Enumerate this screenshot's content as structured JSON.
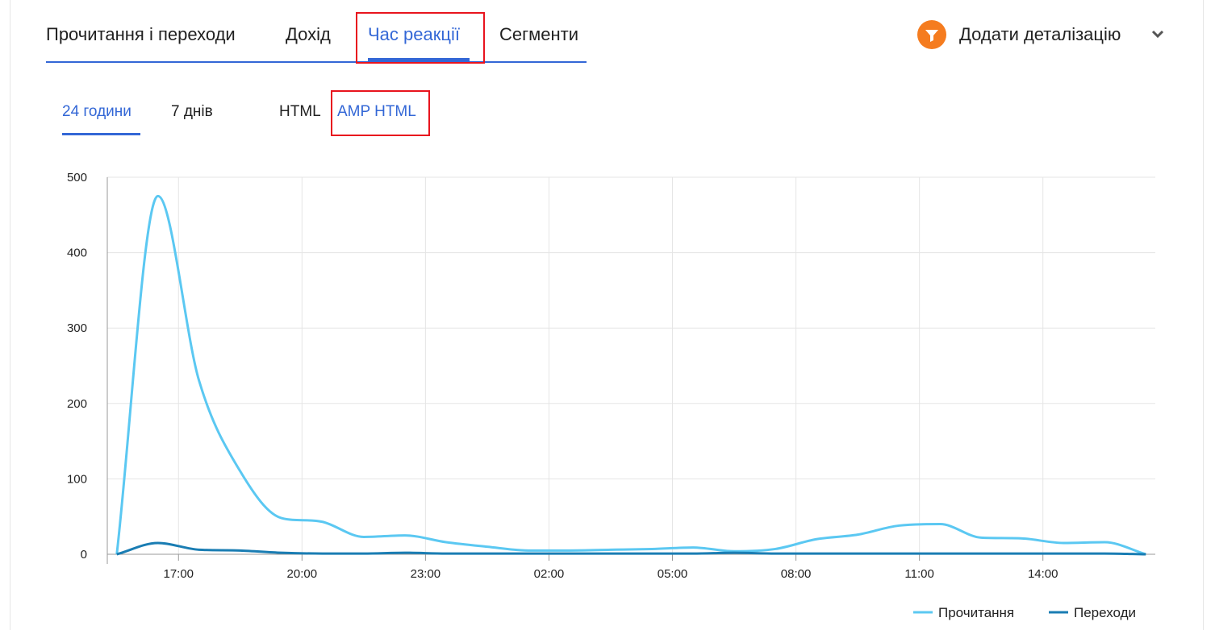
{
  "tabs": [
    "Прочитання і переходи",
    "Дохід",
    "Час реакції",
    "Сегменти"
  ],
  "add_breakdown": "Додати деталізацію",
  "period_tabs": [
    "24 години",
    "7 днів"
  ],
  "format_tabs": [
    "HTML",
    "AMP HTML"
  ],
  "chart_data": {
    "type": "line",
    "x": [
      15.5,
      16.5,
      17.5,
      18.5,
      19.5,
      20.5,
      21.5,
      22.5,
      23.5,
      24.5,
      25.5,
      26.5,
      27.5,
      28.5,
      29.5,
      30.5,
      31.5,
      32.5,
      33.5,
      34.5,
      35.5,
      36.5,
      37.5,
      38.5,
      39.5,
      40.5
    ],
    "series": [
      {
        "name": "Прочитання",
        "color": "#5bc8f2",
        "values": [
          0,
          475,
          230,
          110,
          48,
          43,
          23,
          25,
          16,
          10,
          5,
          5,
          6,
          7,
          9,
          4,
          7,
          20,
          26,
          38,
          40,
          22,
          21,
          15,
          16,
          0
        ]
      },
      {
        "name": "Переходи",
        "color": "#1a7db3",
        "values": [
          0,
          15,
          6,
          5,
          2,
          1,
          1,
          2,
          1,
          1,
          1,
          1,
          1,
          1,
          1,
          2,
          1,
          1,
          1,
          1,
          1,
          1,
          1,
          1,
          1,
          0
        ]
      }
    ],
    "xlim": [
      15.27,
      40.73
    ],
    "xticks": [
      {
        "value": 17,
        "label": "17:00"
      },
      {
        "value": 20,
        "label": "20:00"
      },
      {
        "value": 23,
        "label": "23:00"
      },
      {
        "value": 26,
        "label": "02:00"
      },
      {
        "value": 29,
        "label": "05:00"
      },
      {
        "value": 32,
        "label": "08:00"
      },
      {
        "value": 35,
        "label": "11:00"
      },
      {
        "value": 38,
        "label": "14:00"
      }
    ],
    "ylim": [
      0,
      500
    ],
    "yticks": [
      0,
      100,
      200,
      300,
      400,
      500
    ],
    "grid": true,
    "legend": "bottom-right"
  }
}
